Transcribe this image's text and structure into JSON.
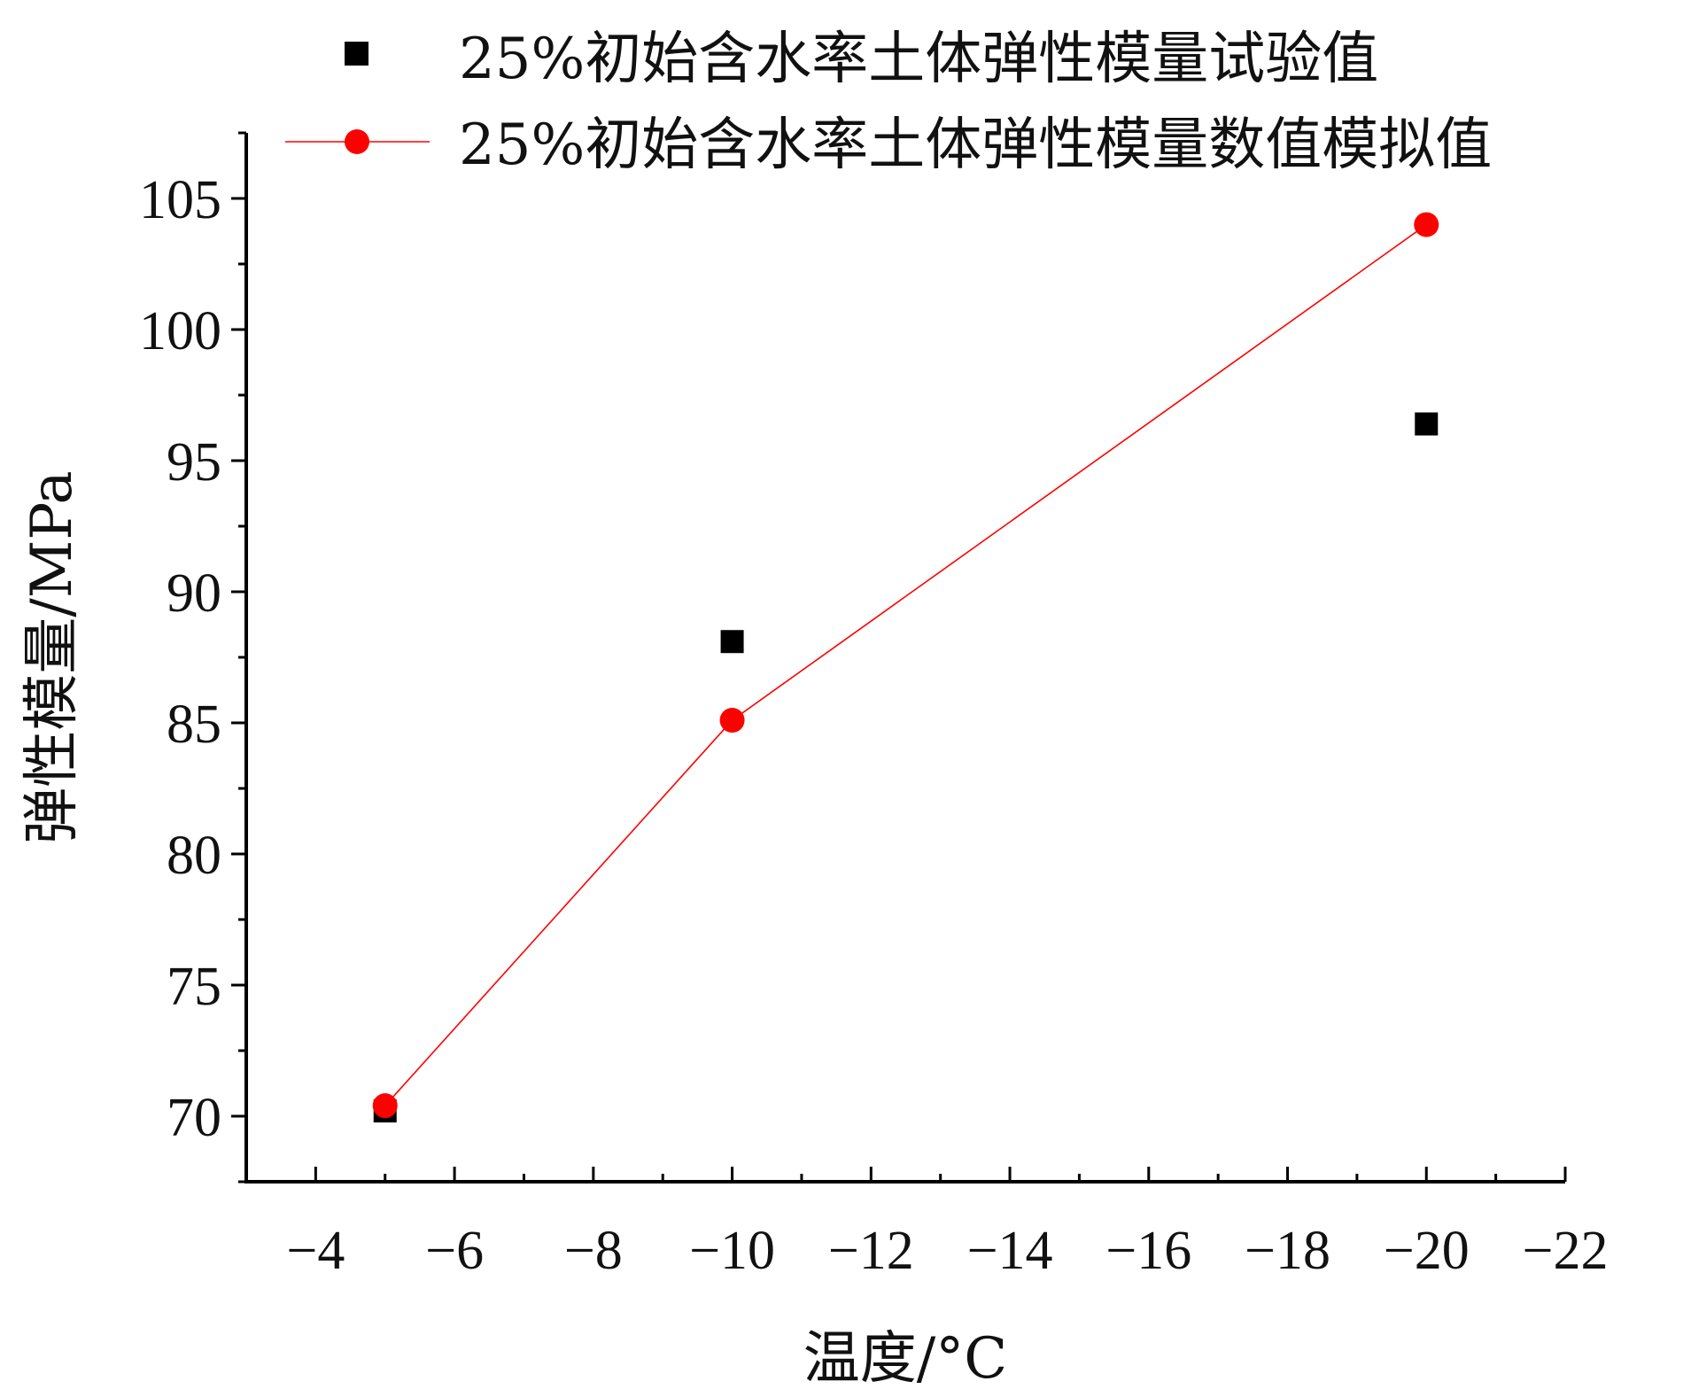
{
  "chart_data": {
    "type": "scatter",
    "title": "",
    "xlabel": "温度/°C",
    "ylabel": "弹性模量/MPa",
    "xlim": [
      -3,
      -22
    ],
    "ylim": [
      67.5,
      107.5
    ],
    "x_ticks": [
      -4,
      -6,
      -8,
      -10,
      -12,
      -14,
      -16,
      -18,
      -20,
      -22
    ],
    "x_tick_labels": [
      "−4",
      "−6",
      "−8",
      "−10",
      "−12",
      "−14",
      "−16",
      "−18",
      "−20",
      "−22"
    ],
    "y_ticks": [
      70,
      75,
      80,
      85,
      90,
      95,
      100,
      105
    ],
    "y_tick_labels": [
      "70",
      "75",
      "80",
      "85",
      "90",
      "95",
      "100",
      "105"
    ],
    "grid": false,
    "legend_position": "top",
    "series": [
      {
        "name": "25%初始含水率土体弹性模量试验值",
        "style": "markers",
        "marker": "square",
        "color": "#000000",
        "x": [
          -5,
          -10,
          -20
        ],
        "y": [
          70.2,
          88.1,
          96.4
        ]
      },
      {
        "name": "25%初始含水率土体弹性模量数值模拟值",
        "style": "line+markers",
        "marker": "circle",
        "color": "#ff0000",
        "x": [
          -5,
          -10,
          -20
        ],
        "y": [
          70.4,
          85.1,
          104.0
        ]
      }
    ]
  }
}
